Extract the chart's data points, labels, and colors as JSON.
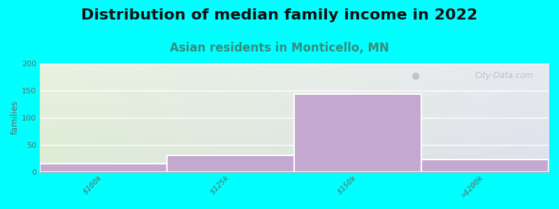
{
  "title": "Distribution of median family income in 2022",
  "subtitle": "Asian residents in Monticello, MN",
  "categories": [
    "$100k",
    "$125k",
    "$150k",
    ">$200k"
  ],
  "values": [
    15,
    30,
    143,
    22
  ],
  "bar_color": "#c4a8d0",
  "bar_edge_color": "#ffffff",
  "ylim": [
    0,
    200
  ],
  "yticks": [
    0,
    50,
    100,
    150,
    200
  ],
  "ylabel": "families",
  "background_color": "#00ffff",
  "plot_bg_color_tl": "#e8f2e0",
  "plot_bg_color_tr": "#e8eaf0",
  "plot_bg_color_bl": "#ddebd4",
  "plot_bg_color_br": "#dfe0ec",
  "title_fontsize": 16,
  "subtitle_fontsize": 12,
  "subtitle_color": "#3a8a7a",
  "watermark": "City-Data.com",
  "bar_width": 1.0,
  "bar_positions": [
    0.5,
    1.5,
    2.5,
    3.5
  ],
  "xlim": [
    0,
    4
  ]
}
